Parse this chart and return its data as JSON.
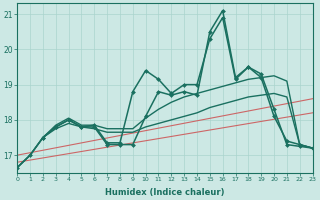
{
  "xlabel": "Humidex (Indice chaleur)",
  "xlim": [
    0,
    23
  ],
  "ylim": [
    16.5,
    21.3
  ],
  "yticks": [
    17,
    18,
    19,
    20,
    21
  ],
  "xticks": [
    0,
    1,
    2,
    3,
    4,
    5,
    6,
    7,
    8,
    9,
    10,
    11,
    12,
    13,
    14,
    15,
    16,
    17,
    18,
    19,
    20,
    21,
    22,
    23
  ],
  "background_color": "#cce8e4",
  "grid_color": "#aad4ce",
  "line_color": "#1a7060",
  "red_line_color": "#cc6666",
  "red_lines": [
    {
      "x0": 0,
      "y0": 17.0,
      "x1": 23,
      "y1": 18.6
    },
    {
      "x0": 0,
      "y0": 16.8,
      "x1": 23,
      "y1": 18.2
    }
  ],
  "lines": [
    {
      "x": [
        0,
        1,
        2,
        3,
        4,
        5,
        6,
        7,
        8,
        9,
        10,
        11,
        12,
        13,
        14,
        15,
        16,
        17,
        18,
        19,
        20,
        21,
        22,
        23
      ],
      "y": [
        16.65,
        17.0,
        17.5,
        17.85,
        18.05,
        17.85,
        17.85,
        17.75,
        17.75,
        17.75,
        18.05,
        18.3,
        18.5,
        18.65,
        18.75,
        18.85,
        18.95,
        19.05,
        19.15,
        19.2,
        19.25,
        19.1,
        17.3,
        17.2
      ],
      "marker": null,
      "linewidth": 1.0
    },
    {
      "x": [
        0,
        1,
        2,
        3,
        4,
        5,
        6,
        7,
        8,
        9,
        10,
        11,
        12,
        13,
        14,
        15,
        16,
        17,
        18,
        19,
        20,
        21,
        22,
        23
      ],
      "y": [
        16.65,
        17.0,
        17.5,
        17.75,
        17.9,
        17.8,
        17.75,
        17.65,
        17.65,
        17.65,
        17.8,
        17.9,
        18.0,
        18.1,
        18.2,
        18.35,
        18.45,
        18.55,
        18.65,
        18.7,
        18.75,
        18.65,
        17.3,
        17.2
      ],
      "marker": null,
      "linewidth": 1.0
    },
    {
      "x": [
        0,
        1,
        2,
        3,
        4,
        5,
        6,
        7,
        8,
        9,
        10,
        11,
        12,
        13,
        14,
        15,
        16,
        17,
        18,
        19,
        20,
        21,
        22,
        23
      ],
      "y": [
        16.65,
        17.0,
        17.5,
        17.8,
        18.0,
        17.8,
        17.8,
        17.3,
        17.3,
        17.3,
        18.1,
        18.8,
        18.7,
        18.8,
        18.7,
        20.5,
        21.1,
        19.2,
        19.5,
        19.2,
        18.1,
        17.4,
        17.3,
        17.2
      ],
      "marker": "D",
      "markersize": 2.0,
      "linewidth": 1.1
    },
    {
      "x": [
        2,
        3,
        4,
        5,
        6,
        7,
        8,
        9,
        10,
        11,
        12,
        13,
        14,
        15,
        16,
        17,
        18,
        19,
        20,
        21,
        22,
        23
      ],
      "y": [
        17.5,
        17.8,
        18.0,
        17.8,
        17.85,
        17.35,
        17.35,
        18.8,
        19.4,
        19.15,
        18.75,
        19.0,
        19.0,
        20.3,
        20.9,
        19.15,
        19.5,
        19.3,
        18.3,
        17.3,
        17.25,
        17.2
      ],
      "marker": "D",
      "markersize": 2.0,
      "linewidth": 1.1
    }
  ]
}
